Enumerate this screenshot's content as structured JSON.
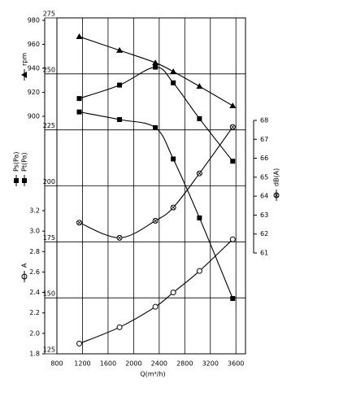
{
  "chart_data": {
    "type": "line",
    "x_label": "Q(m³/h)",
    "x": [
      1150,
      1780,
      2340,
      2620,
      3030,
      3550
    ],
    "xlim": [
      800,
      3750
    ],
    "xticks": [
      800,
      1200,
      1600,
      2000,
      2400,
      2800,
      3200,
      3600
    ],
    "grid": true,
    "axes": {
      "rpm": {
        "lim": [
          900,
          980
        ],
        "ticks": [
          900,
          920,
          940,
          960,
          980
        ]
      },
      "pa": {
        "lim": [
          125,
          275
        ],
        "ticks": [
          125,
          150,
          175,
          200,
          225,
          250,
          275
        ]
      },
      "a": {
        "lim": [
          1.8,
          3.2
        ],
        "ticks": [
          1.8,
          {
            "value": 2,
            "label": "2.0"
          },
          2.2,
          2.4,
          2.6,
          2.8,
          {
            "value": 3,
            "label": "3.0"
          },
          3.2
        ]
      },
      "db": {
        "lim": [
          61,
          68
        ],
        "ticks": [
          61,
          62,
          63,
          64,
          65,
          66,
          67,
          68
        ]
      }
    },
    "series": [
      {
        "name": "rpm",
        "axis": "rpm",
        "marker": "triangle",
        "color": "#000000",
        "values": [
          966.4,
          955,
          944.7,
          937.3,
          925,
          908.8
        ]
      },
      {
        "name": "Pt(Pa)",
        "axis": "pa",
        "marker": "square",
        "color": "#000000",
        "values": [
          239,
          245,
          253,
          246,
          230,
          211
        ]
      },
      {
        "name": "Ps(Pa)",
        "axis": "pa",
        "marker": "square",
        "color": "#000000",
        "values": [
          233,
          229.6,
          226,
          212,
          185.7,
          149.7
        ]
      },
      {
        "name": "A",
        "axis": "a",
        "marker": "circle",
        "color": "#000000",
        "values": [
          1.9,
          2.06,
          2.26,
          2.4,
          2.61,
          2.92
        ]
      },
      {
        "name": "dB(A)",
        "axis": "db",
        "marker": "crossed-circle",
        "color": "#000000",
        "values": [
          62.6,
          61.8,
          62.7,
          63.4,
          65.2,
          67.65
        ]
      }
    ]
  }
}
